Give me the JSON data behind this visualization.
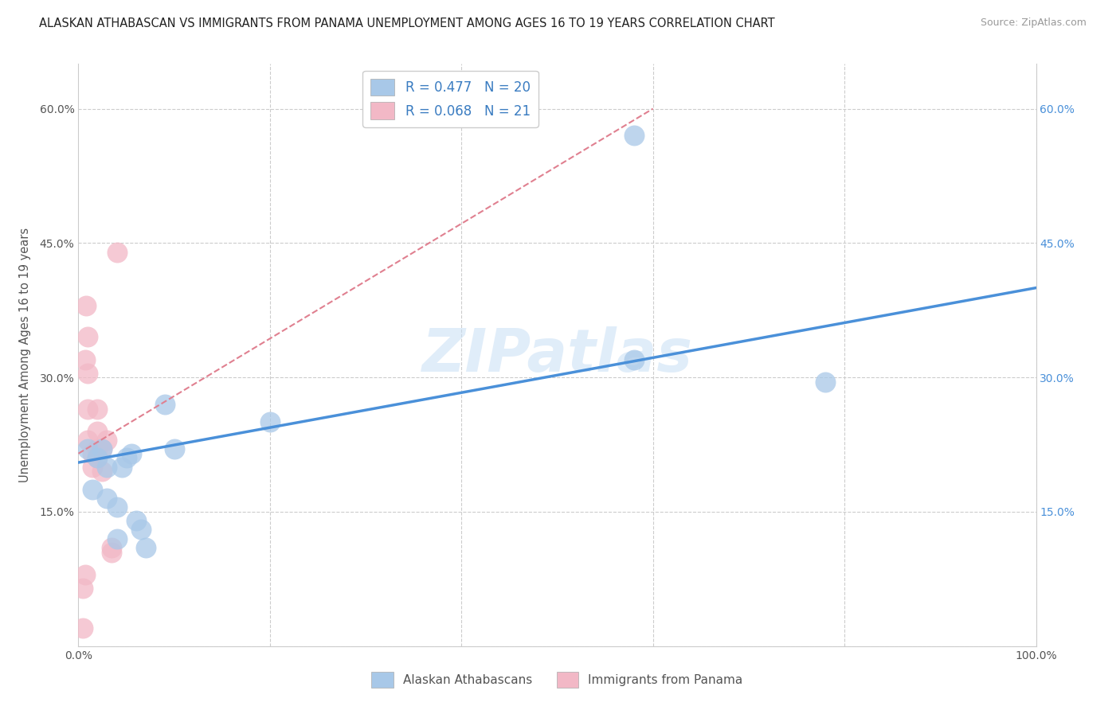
{
  "title": "ALASKAN ATHABASCAN VS IMMIGRANTS FROM PANAMA UNEMPLOYMENT AMONG AGES 16 TO 19 YEARS CORRELATION CHART",
  "source": "Source: ZipAtlas.com",
  "ylabel": "Unemployment Among Ages 16 to 19 years",
  "xlim": [
    0,
    1.0
  ],
  "ylim": [
    0,
    0.65
  ],
  "y_ticks": [
    0.0,
    0.15,
    0.3,
    0.45,
    0.6
  ],
  "blue_R": 0.477,
  "blue_N": 20,
  "pink_R": 0.068,
  "pink_N": 21,
  "blue_color": "#a8c8e8",
  "pink_color": "#f2b8c6",
  "blue_line_color": "#4a90d9",
  "pink_line_color": "#e08090",
  "grid_color": "#cccccc",
  "background_color": "#ffffff",
  "watermark": "ZIPatlas",
  "legend_label_blue": "Alaskan Athabascans",
  "legend_label_pink": "Immigrants from Panama",
  "blue_x": [
    0.01,
    0.015,
    0.02,
    0.025,
    0.03,
    0.03,
    0.04,
    0.04,
    0.045,
    0.05,
    0.055,
    0.06,
    0.065,
    0.07,
    0.09,
    0.1,
    0.2,
    0.58,
    0.58,
    0.78
  ],
  "blue_y": [
    0.22,
    0.175,
    0.21,
    0.22,
    0.2,
    0.165,
    0.155,
    0.12,
    0.2,
    0.21,
    0.215,
    0.14,
    0.13,
    0.11,
    0.27,
    0.22,
    0.25,
    0.57,
    0.32,
    0.295
  ],
  "pink_x": [
    0.005,
    0.005,
    0.007,
    0.007,
    0.008,
    0.01,
    0.01,
    0.01,
    0.01,
    0.015,
    0.015,
    0.02,
    0.02,
    0.02,
    0.02,
    0.025,
    0.025,
    0.03,
    0.035,
    0.035,
    0.04
  ],
  "pink_y": [
    0.02,
    0.065,
    0.08,
    0.32,
    0.38,
    0.23,
    0.265,
    0.305,
    0.345,
    0.2,
    0.215,
    0.22,
    0.21,
    0.24,
    0.265,
    0.195,
    0.22,
    0.23,
    0.105,
    0.11,
    0.44
  ],
  "blue_trendline_x0": 0.0,
  "blue_trendline_y0": 0.205,
  "blue_trendline_x1": 1.0,
  "blue_trendline_y1": 0.4,
  "pink_trendline_x0": 0.0,
  "pink_trendline_y0": 0.215,
  "pink_trendline_x1": 0.6,
  "pink_trendline_y1": 0.6
}
